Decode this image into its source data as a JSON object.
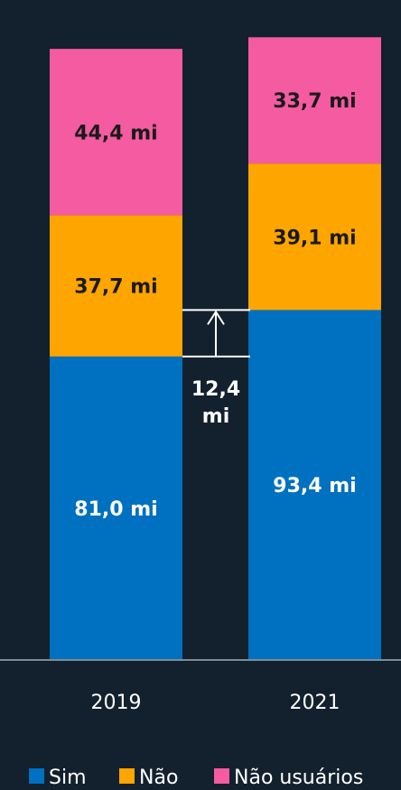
{
  "chart_data": {
    "type": "bar",
    "stacked": true,
    "categories": [
      "2019",
      "2021"
    ],
    "series": [
      {
        "name": "Sim",
        "values": [
          81.0,
          93.4
        ],
        "labels": [
          "81,0 mi",
          "93,4 mi"
        ],
        "color": "#0070c0"
      },
      {
        "name": "Não",
        "values": [
          37.7,
          39.1
        ],
        "labels": [
          "37,7 mi",
          "39,1 mi"
        ],
        "color": "#ffa500"
      },
      {
        "name": "Não usuários",
        "values": [
          44.4,
          33.7
        ],
        "labels": [
          "44,4 mi",
          "33,7 mi"
        ],
        "color": "#f45ba0"
      }
    ],
    "annotation": {
      "text_line1": "12,4",
      "text_line2": "mi",
      "value": 12.4
    },
    "legend_position": "bottom",
    "title": "",
    "xlabel": "",
    "ylabel": "",
    "axis_color": "#7f8c96"
  }
}
